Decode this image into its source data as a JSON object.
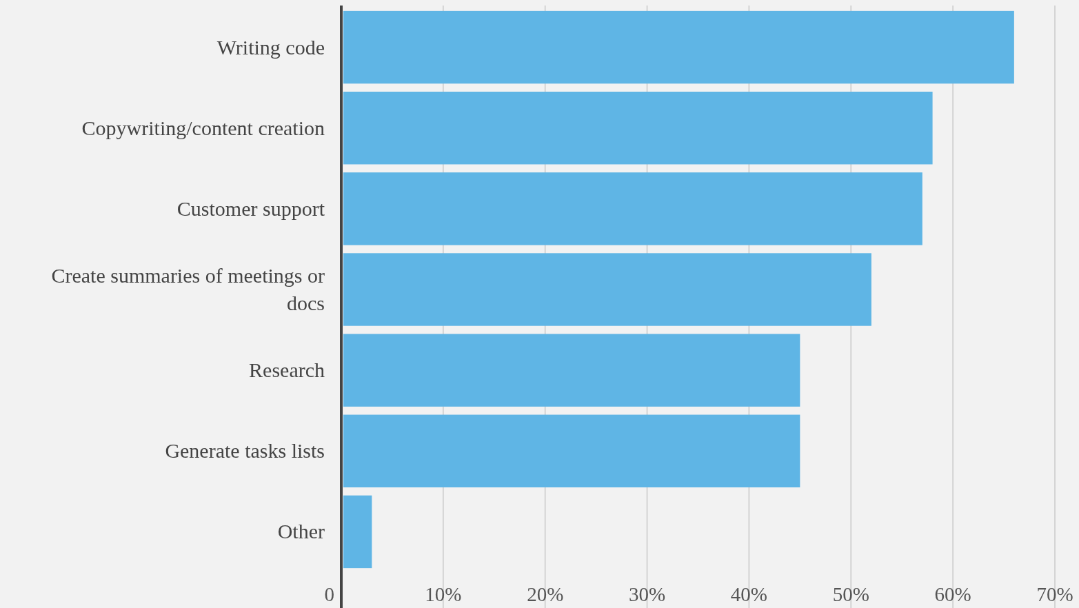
{
  "chart_data": {
    "type": "bar",
    "orientation": "horizontal",
    "categories": [
      "Writing code",
      "Copywriting/content creation",
      "Customer support",
      "Create summaries of meetings or docs",
      "Research",
      "Generate tasks lists",
      "Other"
    ],
    "values": [
      66,
      58,
      57,
      52,
      45,
      45,
      3
    ],
    "color": "#5fb5e5",
    "xlim": [
      0,
      70
    ],
    "xticks": [
      0,
      {
        "value": 10,
        "label": "10%"
      },
      {
        "value": 20,
        "label": "20%"
      },
      {
        "value": 30,
        "label": "30%"
      },
      {
        "value": 40,
        "label": "40%"
      },
      {
        "value": 50,
        "label": "50%"
      },
      {
        "value": 60,
        "label": "60%"
      },
      {
        "value": 70,
        "label": "70%"
      }
    ],
    "grid": "x"
  }
}
